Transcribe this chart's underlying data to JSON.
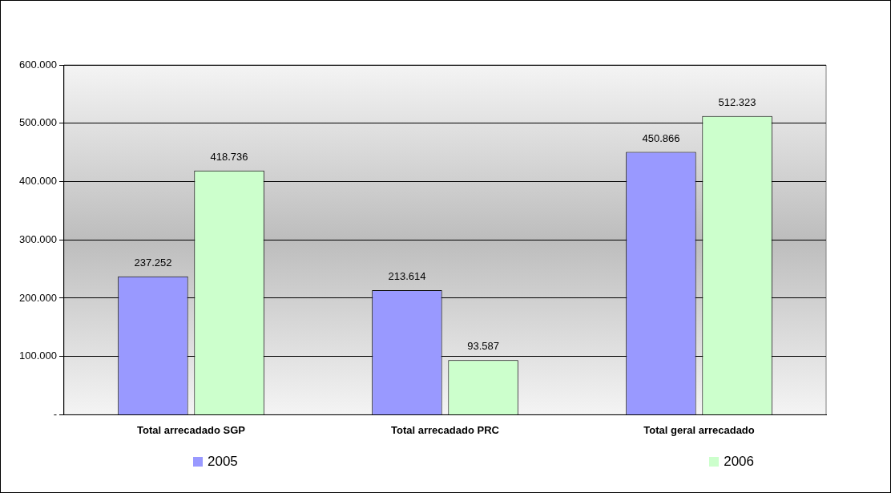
{
  "chart_data": {
    "type": "bar",
    "categories": [
      "Total arrecadado SGP",
      "Total arrecadado PRC",
      "Total geral arrecadado"
    ],
    "series": [
      {
        "name": "2005",
        "color": "#9999ff",
        "values": [
          237252,
          213614,
          450866
        ],
        "value_labels": [
          "237.252",
          "213.614",
          "450.866"
        ]
      },
      {
        "name": "2006",
        "color": "#ccffcc",
        "values": [
          418736,
          93587,
          512323
        ],
        "value_labels": [
          "418.736",
          "93.587",
          "512.323"
        ]
      }
    ],
    "ylim": [
      0,
      600000
    ],
    "yticks": [
      {
        "value": 0,
        "label": "-"
      },
      {
        "value": 100000,
        "label": "100.000"
      },
      {
        "value": 200000,
        "label": "200.000"
      },
      {
        "value": 300000,
        "label": "300.000"
      },
      {
        "value": 400000,
        "label": "400.000"
      },
      {
        "value": 500000,
        "label": "500.000"
      },
      {
        "value": 600000,
        "label": "600.000"
      }
    ],
    "grid": "y",
    "legend": "bottom"
  }
}
